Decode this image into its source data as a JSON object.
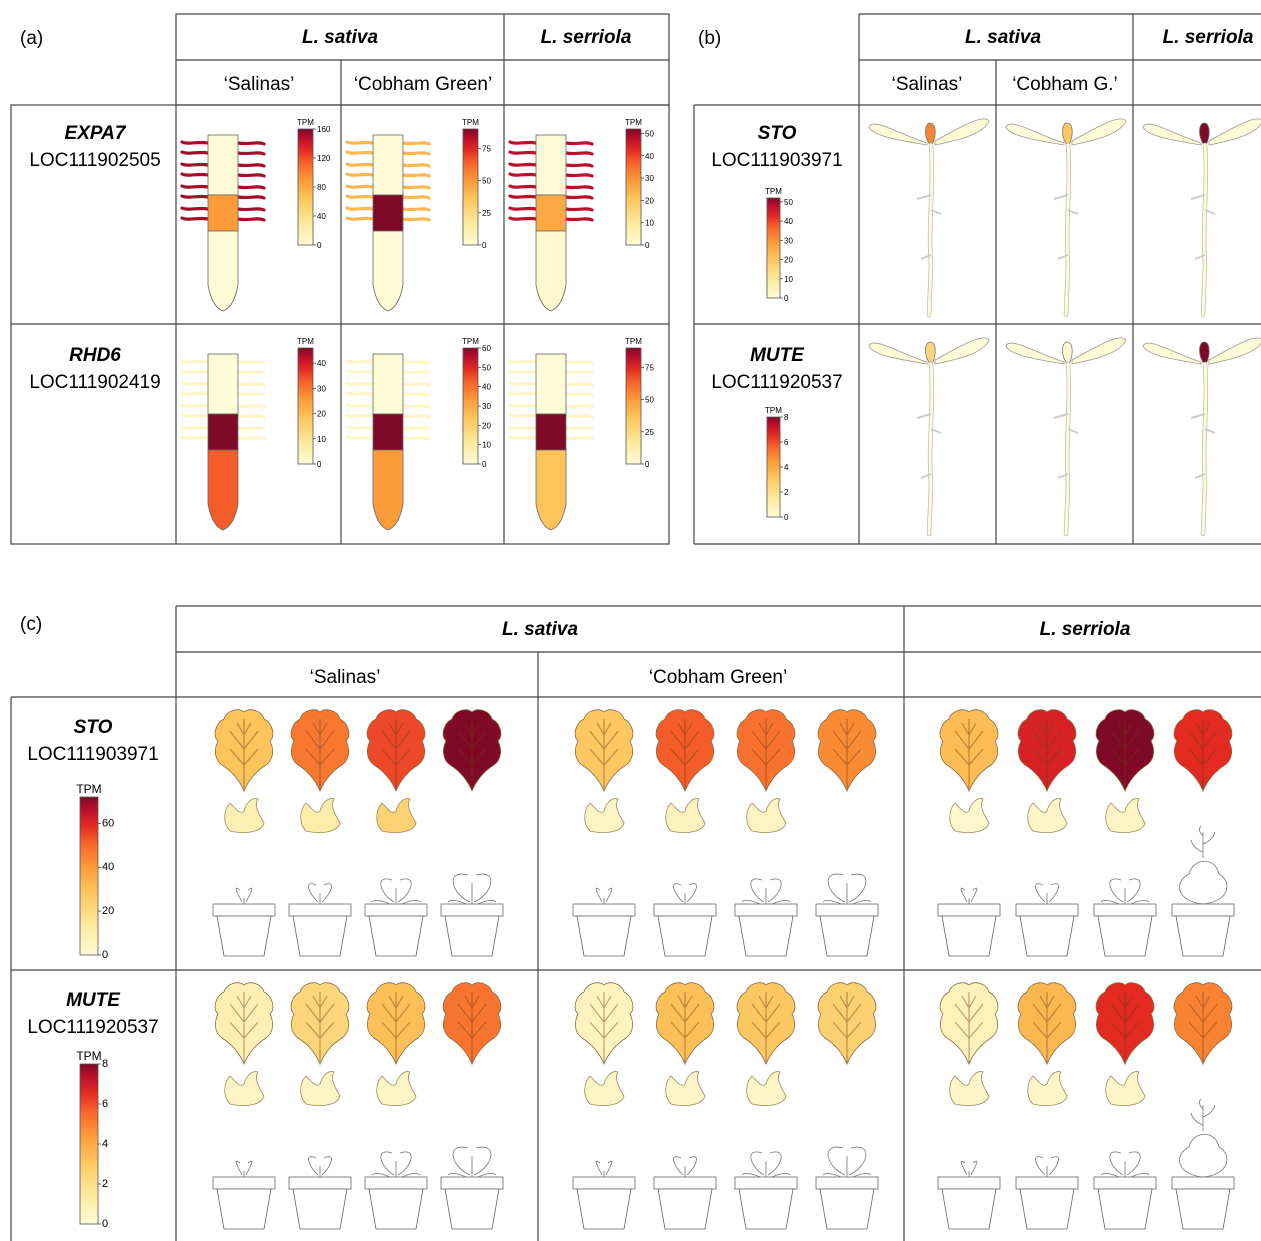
{
  "scale": {
    "c0": "#fffbd6",
    "c1": "#fde89a",
    "c2": "#fdc45c",
    "c3": "#fc9d3a",
    "c4": "#f7662b",
    "c5": "#e22a22",
    "c6": "#bc0f2c",
    "c7": "#7e0a27"
  },
  "tpm_label": "TPM",
  "panel_a": {
    "label": "(a)",
    "species": [
      "L. sativa",
      "L. serriola"
    ],
    "cultivars": [
      "‘Salinas’",
      "‘Cobham Green’",
      ""
    ],
    "rows": [
      {
        "gene": "EXPA7",
        "locus": "LOC111902505",
        "cells": [
          {
            "hair": 0.95,
            "mid": 0.55,
            "tip": 0.0,
            "bar_max": 160,
            "ticks": [
              0,
              40,
              80,
              120,
              160
            ]
          },
          {
            "hair": 0.45,
            "mid": 1.0,
            "tip": 0.0,
            "bar_max": 90,
            "ticks": [
              0,
              25,
              50,
              75
            ]
          },
          {
            "hair": 0.92,
            "mid": 0.5,
            "tip": 0.03,
            "bar_max": 52,
            "ticks": [
              0,
              10,
              20,
              30,
              40,
              50
            ]
          }
        ]
      },
      {
        "gene": "RHD6",
        "locus": "LOC111902419",
        "cells": [
          {
            "hair": 0.05,
            "mid": 1.0,
            "tip": 0.72,
            "bar_max": 46,
            "ticks": [
              0,
              10,
              20,
              30,
              40
            ]
          },
          {
            "hair": 0.05,
            "mid": 1.0,
            "tip": 0.55,
            "bar_max": 60,
            "ticks": [
              0,
              10,
              20,
              30,
              40,
              50,
              60
            ]
          },
          {
            "hair": 0.05,
            "mid": 1.0,
            "tip": 0.4,
            "bar_max": 90,
            "ticks": [
              0,
              25,
              50,
              75
            ]
          }
        ]
      }
    ]
  },
  "panel_b": {
    "label": "(b)",
    "species": [
      "L. sativa",
      "L. serriola"
    ],
    "cultivars": [
      "‘Salinas’",
      "‘Cobham G.’",
      ""
    ],
    "rows": [
      {
        "gene": "STO",
        "locus": "LOC111903971",
        "bar_max": 52,
        "ticks": [
          0,
          10,
          20,
          30,
          40,
          50
        ],
        "stomata": [
          0.62,
          0.38,
          1.0
        ]
      },
      {
        "gene": "MUTE",
        "locus": "LOC111920537",
        "bar_max": 8,
        "ticks": [
          0,
          2,
          4,
          6,
          8
        ],
        "stomata": [
          0.3,
          0.0,
          1.0
        ]
      }
    ]
  },
  "panel_c": {
    "label": "(c)",
    "species": [
      "L. sativa",
      "L. serriola"
    ],
    "cultivars": [
      "‘Salinas’",
      "‘Cobham Green’",
      ""
    ],
    "rows": [
      {
        "gene": "STO",
        "locus": "LOC111903971",
        "bar_max": 72,
        "ticks": [
          0,
          20,
          40,
          60
        ],
        "groups": [
          {
            "leaves": [
              0.4,
              0.65,
              0.76,
              1.0
            ],
            "cots": [
              0.12,
              0.15,
              0.32
            ]
          },
          {
            "leaves": [
              0.38,
              0.72,
              0.67,
              0.6
            ],
            "cots": [
              0.06,
              0.08,
              0.07
            ]
          },
          {
            "leaves": [
              0.43,
              0.85,
              1.0,
              0.82
            ],
            "cots": [
              0.03,
              0.05,
              0.06
            ]
          }
        ]
      },
      {
        "gene": "MUTE",
        "locus": "LOC111920537",
        "bar_max": 8,
        "ticks": [
          0,
          2,
          4,
          6,
          8
        ],
        "groups": [
          {
            "leaves": [
              0.12,
              0.3,
              0.42,
              0.66
            ],
            "cots": [
              0.06,
              0.06,
              0.06
            ]
          },
          {
            "leaves": [
              0.08,
              0.42,
              0.38,
              0.33
            ],
            "cots": [
              0.06,
              0.05,
              0.05
            ]
          },
          {
            "leaves": [
              0.1,
              0.45,
              0.82,
              0.62
            ],
            "cots": [
              0.05,
              0.05,
              0.05
            ]
          }
        ]
      }
    ]
  }
}
